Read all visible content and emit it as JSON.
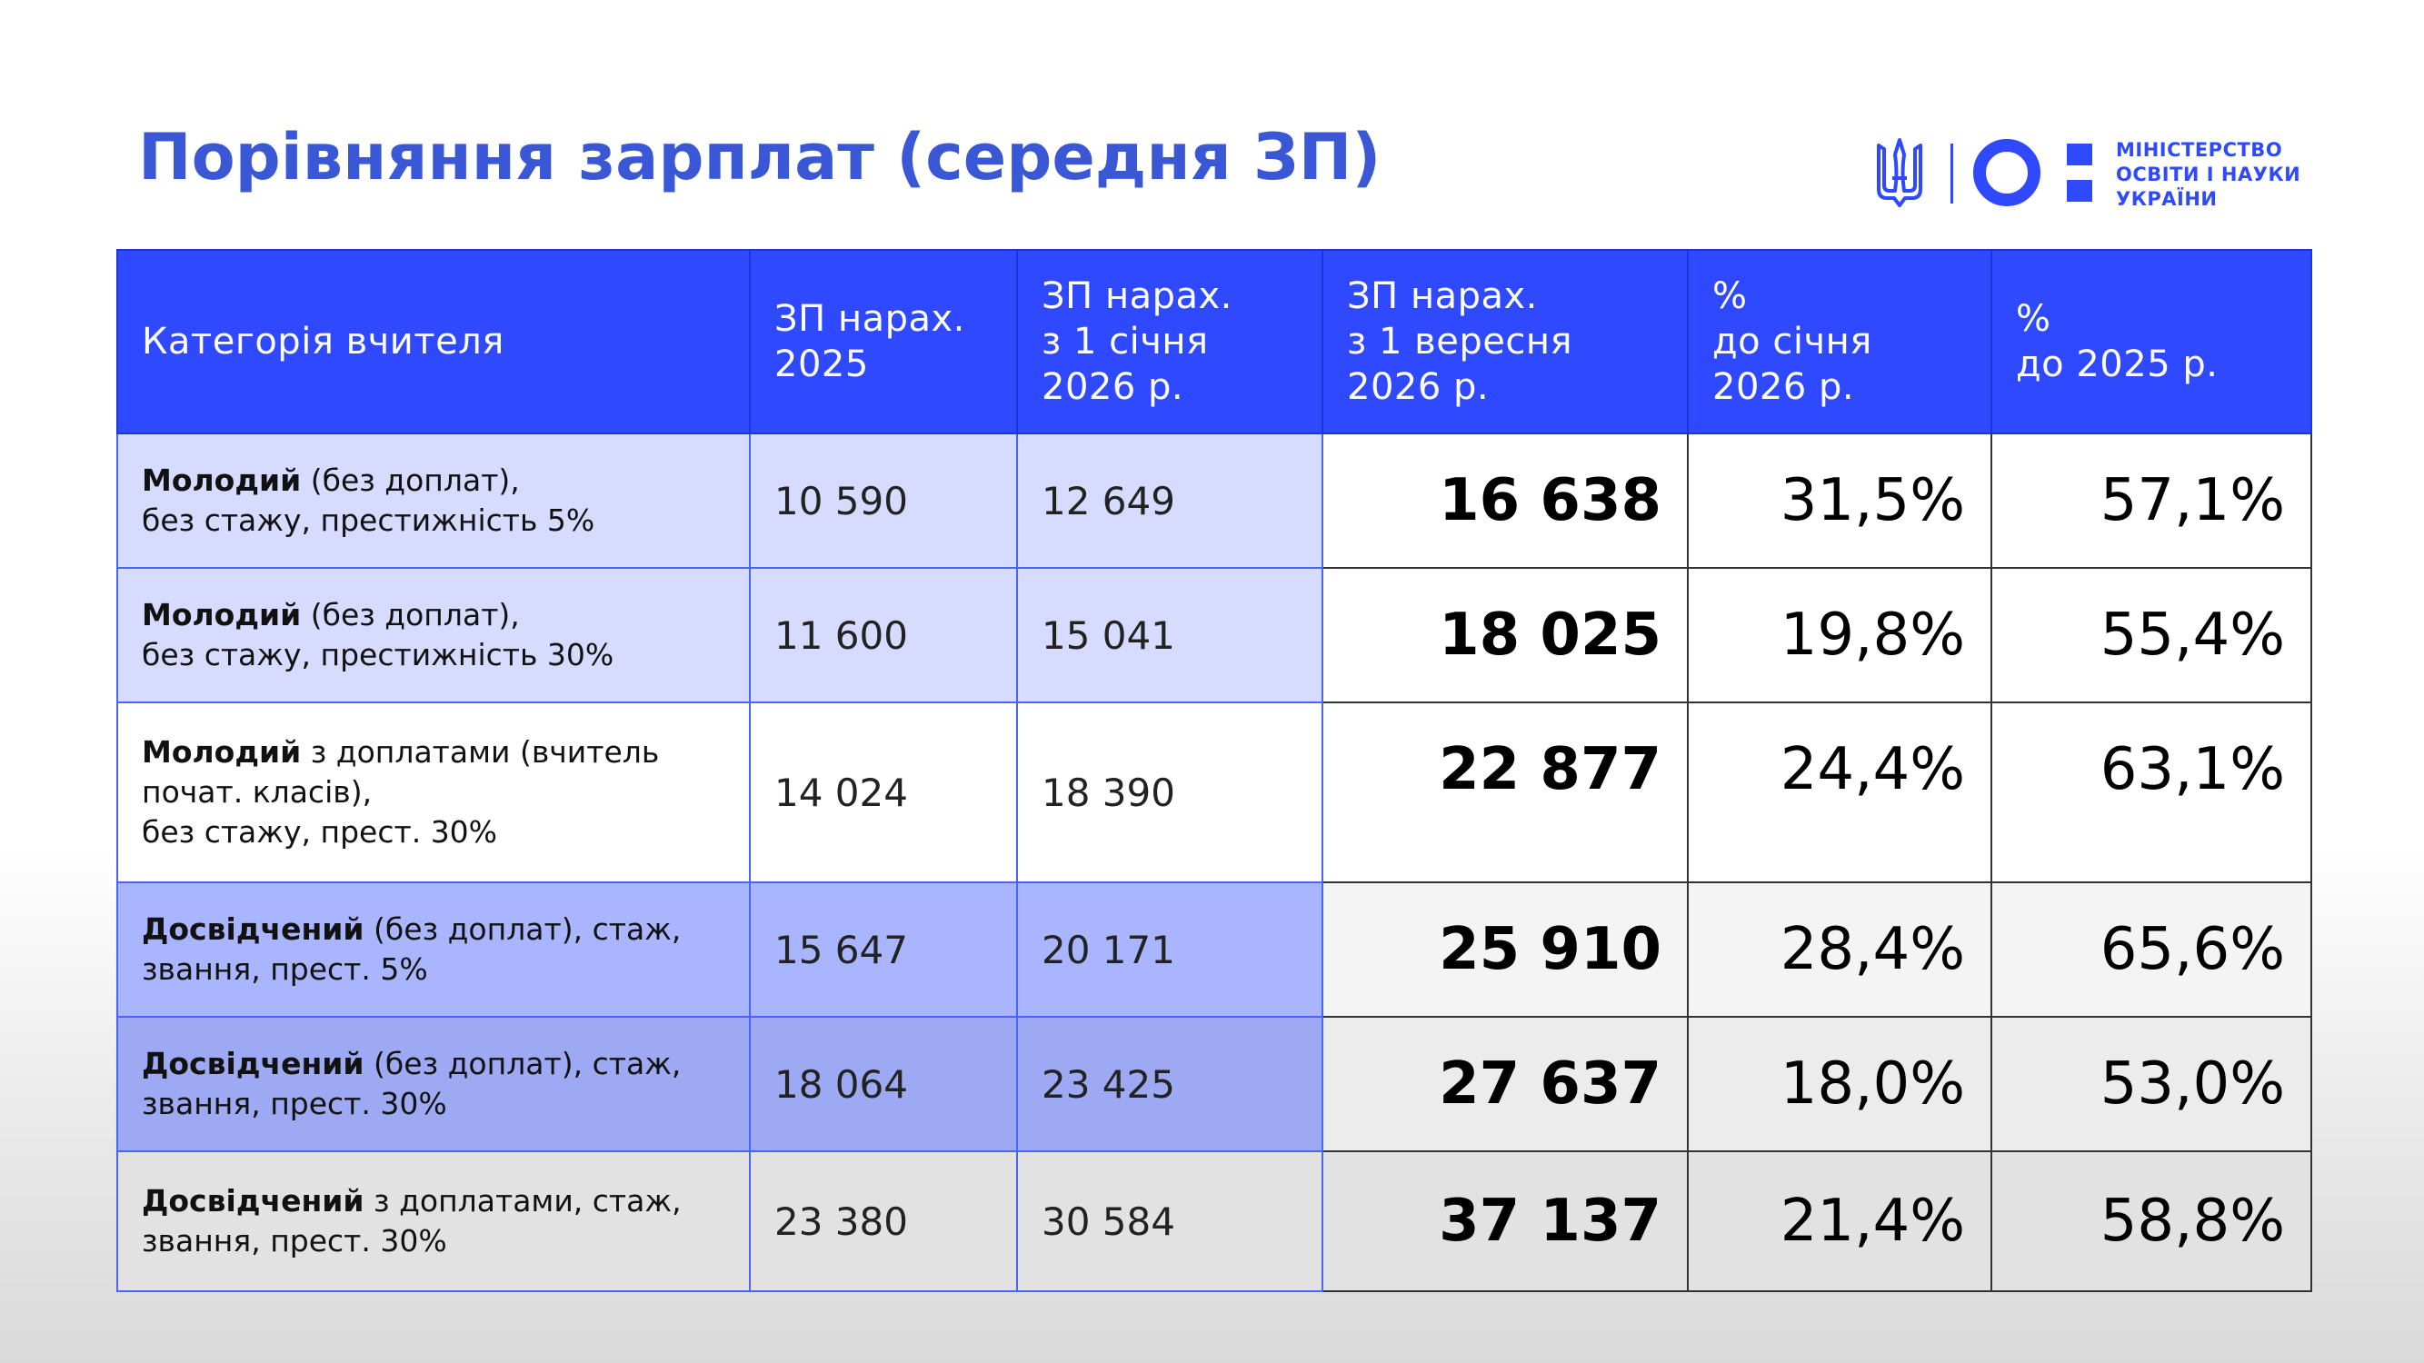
{
  "title": "Порівняння зарплат (середня ЗП)",
  "logo": {
    "org_line1": "МІНІСТЕРСТВО",
    "org_line2": "ОСВІТИ І НАУКИ",
    "org_line3": "УКРАЇНИ",
    "brand_color": "#2f49ff"
  },
  "table": {
    "headers": [
      {
        "lines": [
          "Категорія вчителя"
        ]
      },
      {
        "lines": [
          "ЗП нарах.",
          "2025"
        ]
      },
      {
        "lines": [
          "ЗП нарах.",
          "з 1 січня",
          "2026 р."
        ]
      },
      {
        "lines": [
          "ЗП нарах.",
          "з 1 вересня",
          "2026 р."
        ]
      },
      {
        "lines": [
          "%",
          "до січня",
          "2026 р."
        ]
      },
      {
        "lines": [
          "%",
          "до 2025 р."
        ]
      }
    ],
    "rows": [
      {
        "cat_bold": "Молодий",
        "cat_rest_1": " (без доплат),",
        "cat_line2": "без стажу, престижність 5%",
        "cat_line3": "",
        "zp2025": "10 590",
        "zp_jan": "12 649",
        "zp_sep": "16 638",
        "pct_jan": "31,5%",
        "pct_2025": "57,1%"
      },
      {
        "cat_bold": "Молодий",
        "cat_rest_1": " (без доплат),",
        "cat_line2": "без стажу, престижність 30%",
        "cat_line3": "",
        "zp2025": "11 600",
        "zp_jan": "15 041",
        "zp_sep": "18 025",
        "pct_jan": "19,8%",
        "pct_2025": "55,4%"
      },
      {
        "cat_bold": "Молодий",
        "cat_rest_1": " з доплатами (вчитель",
        "cat_line2": "почат. класів),",
        "cat_line3": "без стажу, прест. 30%",
        "zp2025": "14 024",
        "zp_jan": "18 390",
        "zp_sep": "22 877",
        "pct_jan": "24,4%",
        "pct_2025": "63,1%"
      },
      {
        "cat_bold": "Досвідчений",
        "cat_rest_1": " (без доплат), стаж,",
        "cat_line2": "звання, прест. 5%",
        "cat_line3": "",
        "zp2025": "15 647",
        "zp_jan": "20 171",
        "zp_sep": "25 910",
        "pct_jan": "28,4%",
        "pct_2025": "65,6%"
      },
      {
        "cat_bold": "Досвідчений",
        "cat_rest_1": " (без доплат), стаж,",
        "cat_line2": "звання, прест. 30%",
        "cat_line3": "",
        "zp2025": "18 064",
        "zp_jan": "23 425",
        "zp_sep": "27 637",
        "pct_jan": "18,0%",
        "pct_2025": "53,0%"
      },
      {
        "cat_bold": "Досвідчений",
        "cat_rest_1": " з доплатами, стаж,",
        "cat_line2": "звання, прест. 30%",
        "cat_line3": "",
        "zp2025": "23 380",
        "zp_jan": "30 584",
        "zp_sep": "37 137",
        "pct_jan": "21,4%",
        "pct_2025": "58,8%"
      }
    ]
  }
}
